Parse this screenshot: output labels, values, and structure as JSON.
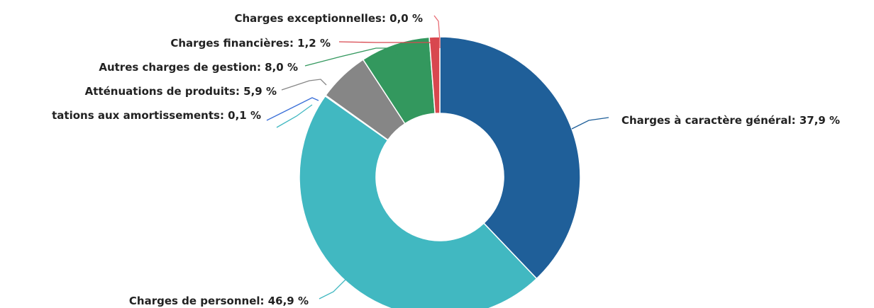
{
  "chart_data": {
    "type": "pie",
    "variant": "donut",
    "unit": "%",
    "legend": "none",
    "slices": [
      {
        "name": "Charges à caractère général",
        "value": 37.9,
        "label": "Charges à caractère général: 37,9 %",
        "color": "#1f5f99"
      },
      {
        "name": "Charges de personnel",
        "value": 46.9,
        "label": "Charges de personnel: 46,9 %",
        "color": "#41b8c1"
      },
      {
        "name": "Dotations aux amortissements",
        "value": 0.1,
        "label": "tations aux amortissements: 0,1 %",
        "color": "#3a6fd8",
        "connector_color": "#3a6fd8"
      },
      {
        "name": "Atténuations de produits",
        "value": 5.9,
        "label": "Atténuations de produits: 5,9 %",
        "color": "#868686"
      },
      {
        "name": "Autres charges de gestion",
        "value": 8.0,
        "label": "Autres charges de gestion: 8,0 %",
        "color": "#33985e"
      },
      {
        "name": "Charges financières",
        "value": 1.2,
        "label": "Charges financières: 1,2 %",
        "color": "#d8474f"
      },
      {
        "name": "Charges exceptionnelles",
        "value": 0.0,
        "label": "Charges exceptionnelles: 0,0 %",
        "color": "#e86c74"
      }
    ]
  }
}
